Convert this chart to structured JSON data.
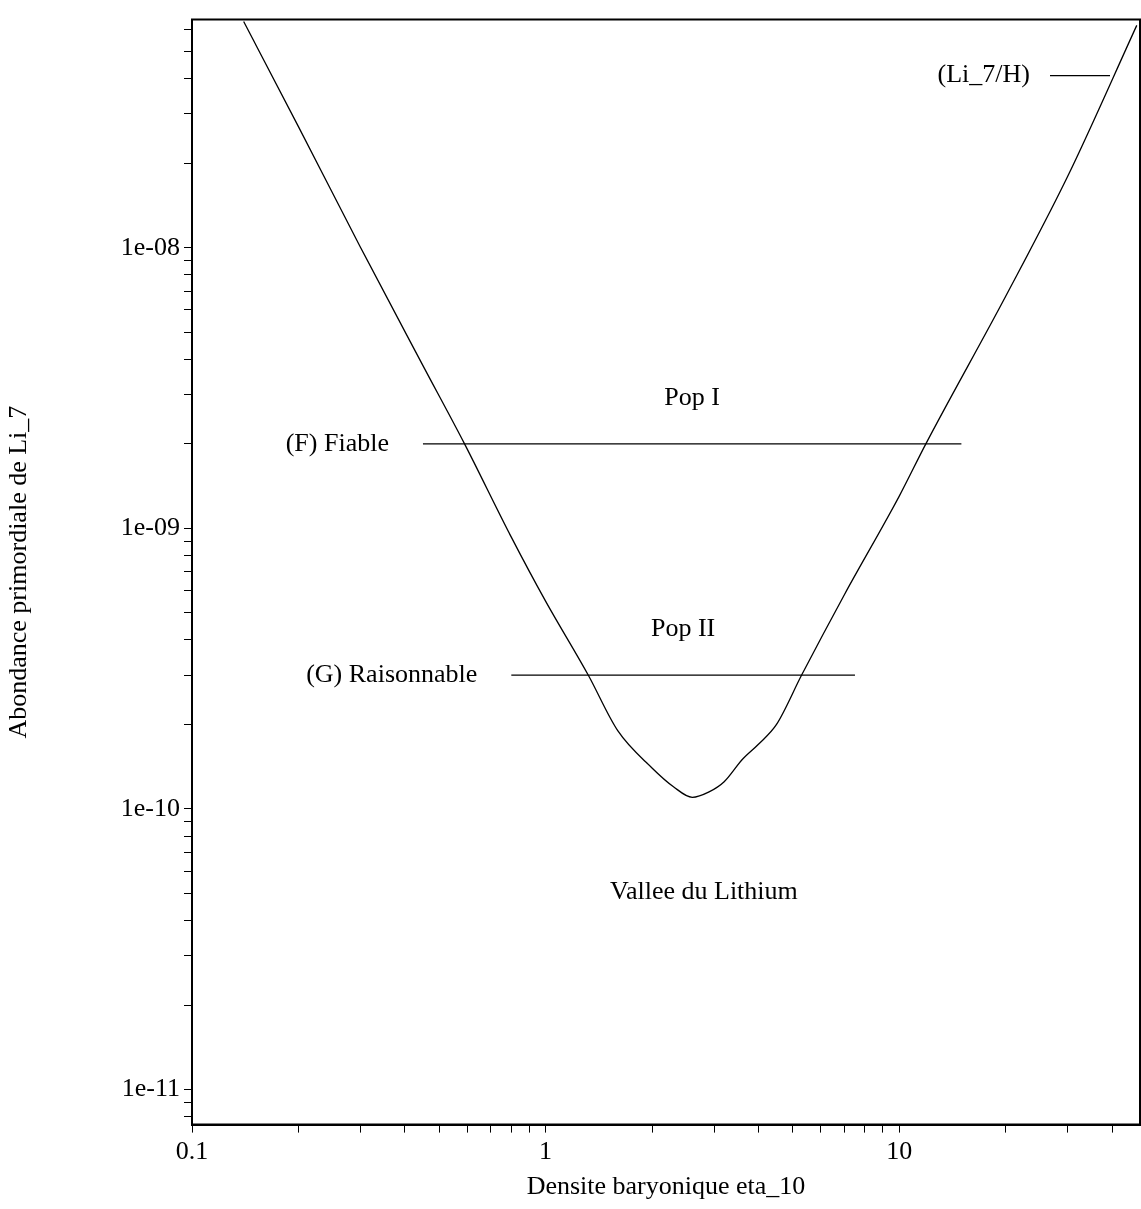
{
  "chart_data": {
    "type": "line",
    "xlabel": "Densite baryonique eta_10",
    "ylabel": "Abondance primordiale de Li_7",
    "log": "xy",
    "grid": false,
    "legend": "top right",
    "marker": "none",
    "line_style": "solid",
    "xlim": [
      0.1,
      48
    ],
    "xticks": [
      0.1,
      {
        "value": 0.2,
        "label": null
      },
      {
        "value": 0.3,
        "label": null
      },
      {
        "value": 0.4,
        "label": null
      },
      {
        "value": 0.5,
        "label": null
      },
      {
        "value": 0.6,
        "label": null
      },
      {
        "value": 0.7,
        "label": null
      },
      {
        "value": 0.8,
        "label": null
      },
      {
        "value": 0.9,
        "label": null
      },
      1,
      {
        "value": 2,
        "label": null
      },
      {
        "value": 3,
        "label": null
      },
      {
        "value": 4,
        "label": null
      },
      {
        "value": 5,
        "label": null
      },
      {
        "value": 6,
        "label": null
      },
      {
        "value": 7,
        "label": null
      },
      {
        "value": 8,
        "label": null
      },
      {
        "value": 9,
        "label": null
      },
      10,
      {
        "value": 20,
        "label": null
      },
      {
        "value": 30,
        "label": null
      },
      {
        "value": 40,
        "label": null
      }
    ],
    "ylim": [
      7.5e-12,
      6.5e-08
    ],
    "yticks": [
      {
        "value": 8e-12,
        "label": null
      },
      {
        "value": 9e-12,
        "label": null
      },
      {
        "value": 1e-11,
        "label": "1e-11"
      },
      {
        "value": 2e-11,
        "label": null
      },
      {
        "value": 3e-11,
        "label": null
      },
      {
        "value": 4e-11,
        "label": null
      },
      {
        "value": 5e-11,
        "label": null
      },
      {
        "value": 6e-11,
        "label": null
      },
      {
        "value": 7e-11,
        "label": null
      },
      {
        "value": 8e-11,
        "label": null
      },
      {
        "value": 9e-11,
        "label": null
      },
      {
        "value": 1e-10,
        "label": "1e-10"
      },
      {
        "value": 2e-10,
        "label": null
      },
      {
        "value": 3e-10,
        "label": null
      },
      {
        "value": 4e-10,
        "label": null
      },
      {
        "value": 5e-10,
        "label": null
      },
      {
        "value": 6e-10,
        "label": null
      },
      {
        "value": 7e-10,
        "label": null
      },
      {
        "value": 8e-10,
        "label": null
      },
      {
        "value": 9e-10,
        "label": null
      },
      {
        "value": 1e-09,
        "label": "1e-09"
      },
      {
        "value": 2e-09,
        "label": null
      },
      {
        "value": 3e-09,
        "label": null
      },
      {
        "value": 4e-09,
        "label": null
      },
      {
        "value": 5e-09,
        "label": null
      },
      {
        "value": 6e-09,
        "label": null
      },
      {
        "value": 7e-09,
        "label": null
      },
      {
        "value": 8e-09,
        "label": null
      },
      {
        "value": 9e-09,
        "label": null
      },
      {
        "value": 1e-08,
        "label": "1e-08"
      },
      {
        "value": 2e-08,
        "label": null
      },
      {
        "value": 3e-08,
        "label": null
      },
      {
        "value": 4e-08,
        "label": null
      },
      {
        "value": 5e-08,
        "label": null
      },
      {
        "value": 6e-08,
        "label": null
      }
    ],
    "series": [
      {
        "name": "(Li_7/H)",
        "color": "#000000",
        "x": [
          0.14,
          0.2,
          0.3,
          0.45,
          0.59,
          0.8,
          1.0,
          1.32,
          1.6,
          2.0,
          2.3,
          2.6,
          2.9,
          3.2,
          3.6,
          4.0,
          4.5,
          5.3,
          7.0,
          10,
          11.9,
          20,
          30,
          47
        ],
        "values": [
          6.4e-08,
          2.7e-08,
          1e-08,
          3.8e-09,
          2e-09,
          9.3e-10,
          5.5e-10,
          3e-10,
          1.9e-10,
          1.4e-10,
          1.2e-10,
          1.1e-10,
          1.15e-10,
          1.25e-10,
          1.5e-10,
          1.7e-10,
          2e-10,
          3e-10,
          5.8e-10,
          1.3e-09,
          2e-09,
          6.7e-09,
          1.8e-08,
          6.2e-08
        ]
      },
      {
        "name": "(F) Fiable",
        "color": "#000000",
        "x": [
          0.45,
          15
        ],
        "values": [
          2e-09,
          2e-09
        ]
      },
      {
        "name": "(G) Raisonnable",
        "color": "#000000",
        "x": [
          0.8,
          7.5
        ],
        "values": [
          3e-10,
          3e-10
        ]
      }
    ],
    "annotations": [
      "Pop I",
      "Pop II",
      "Vallee du Lithium"
    ]
  }
}
